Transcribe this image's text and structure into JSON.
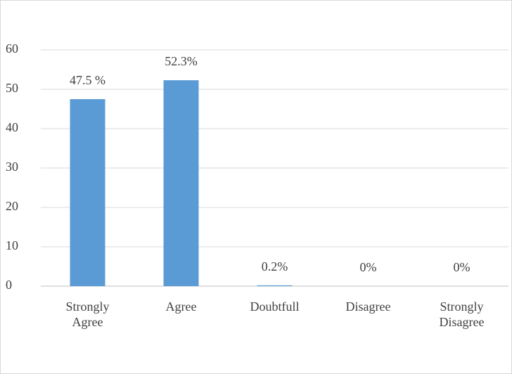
{
  "chart_data": {
    "type": "bar",
    "categories": [
      "Strongly Agree",
      "Agree",
      "Doubtfull",
      "Disagree",
      "Strongly Disagree"
    ],
    "values": [
      47.5,
      52.3,
      0.2,
      0,
      0
    ],
    "value_labels": [
      "47.5 %",
      "52.3%",
      "0.2%",
      "0%",
      "0%"
    ],
    "color": "#5b9bd5",
    "ylim": [
      0,
      60
    ],
    "yticks": [
      0,
      10,
      20,
      30,
      40,
      50,
      60
    ],
    "grid": true
  }
}
